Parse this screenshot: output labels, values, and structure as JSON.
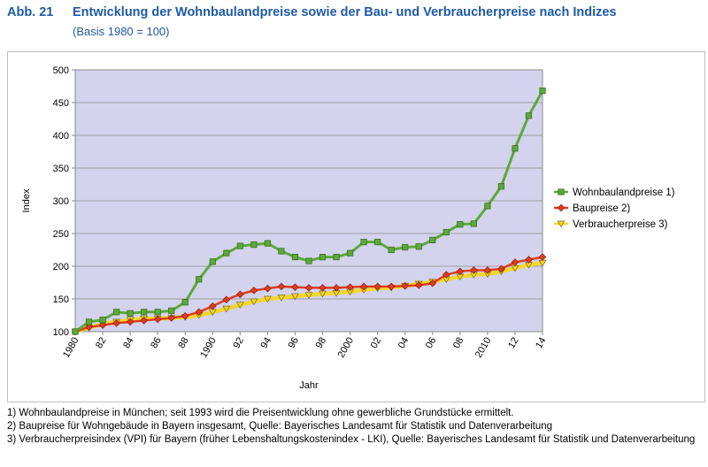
{
  "header": {
    "figure_number": "Abb. 21",
    "title": "Entwicklung der Wohnbaulandpreise sowie der Bau- und Verbraucherpreise nach Indizes",
    "subtitle": "(Basis 1980 = 100)"
  },
  "footnotes": [
    "1) Wohnbaulandpreise in München; seit 1993 wird die Preisentwicklung ohne gewerbliche Grundstücke ermittelt.",
    "2) Baupreise für Wohngebäude in Bayern insgesamt, Quelle: Bayerisches Landesamt für Statistik und Datenverarbeitung",
    "3) Verbraucherpreisindex (VPI) für Bayern (früher Lebenshaltungskostenindex - LKI), Quelle: Bayerisches Landesamt für Statistik und Datenverarbeitung"
  ],
  "colors": {
    "title": "#1f5aa6",
    "plot_background": "#d3d3ee",
    "series_1": "#5aaa3a",
    "series_2": "#e03c1e",
    "series_3": "#f2d62f"
  },
  "chart_data": {
    "type": "line",
    "xlabel": "Jahr",
    "ylabel": "Index",
    "ylim": [
      100,
      500
    ],
    "yticks": [
      100,
      150,
      200,
      250,
      300,
      350,
      400,
      450,
      500
    ],
    "xticks": [
      1980,
      1982,
      1984,
      1986,
      1988,
      1990,
      1992,
      1994,
      1996,
      1998,
      2000,
      2002,
      2004,
      2006,
      2008,
      2010,
      2012,
      2014
    ],
    "xtick_labels": [
      "1980",
      "82",
      "84",
      "86",
      "88",
      "1990",
      "92",
      "94",
      "96",
      "98",
      "2000",
      "02",
      "04",
      "06",
      "08",
      "2010",
      "12",
      "14"
    ],
    "grid": true,
    "legend_position": "right",
    "x": [
      1980,
      1981,
      1982,
      1983,
      1984,
      1985,
      1986,
      1987,
      1988,
      1989,
      1990,
      1991,
      1992,
      1993,
      1994,
      1995,
      1996,
      1997,
      1998,
      1999,
      2000,
      2001,
      2002,
      2003,
      2004,
      2005,
      2006,
      2007,
      2008,
      2009,
      2010,
      2011,
      2012,
      2013,
      2014
    ],
    "series": [
      {
        "name": "Wohnbaulandpreise 1)",
        "color": "#5aaa3a",
        "marker": "square",
        "values": [
          100,
          115,
          118,
          130,
          128,
          130,
          130,
          132,
          145,
          180,
          207,
          220,
          231,
          233,
          235,
          223,
          214,
          208,
          214,
          214,
          220,
          237,
          237,
          225,
          229,
          230,
          240,
          252,
          264,
          265,
          292,
          322,
          380,
          430,
          468
        ]
      },
      {
        "name": "Baupreise 2)",
        "color": "#e03c1e",
        "marker": "diamond",
        "values": [
          100,
          107,
          110,
          113,
          115,
          117,
          119,
          121,
          124,
          130,
          139,
          149,
          157,
          163,
          166,
          169,
          168,
          167,
          167,
          167,
          168,
          169,
          169,
          169,
          170,
          171,
          174,
          187,
          192,
          194,
          194,
          196,
          206,
          210,
          214
        ]
      },
      {
        "name": "Verbraucherpreise 3)",
        "color": "#f2d62f",
        "marker": "triangle-down",
        "values": [
          100,
          106,
          112,
          115,
          118,
          120,
          120,
          121,
          122,
          125,
          130,
          135,
          141,
          146,
          150,
          152,
          154,
          156,
          158,
          159,
          161,
          164,
          166,
          167,
          170,
          173,
          176,
          180,
          184,
          187,
          188,
          192,
          197,
          202,
          205
        ]
      }
    ]
  }
}
